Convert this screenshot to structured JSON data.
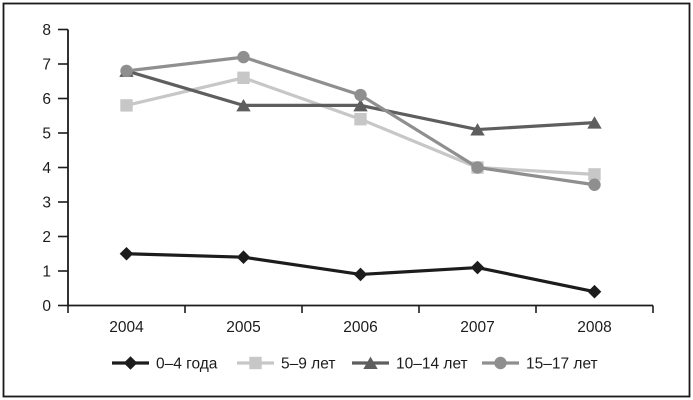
{
  "chart_data": {
    "type": "line",
    "title": "",
    "xlabel": "",
    "ylabel": "",
    "categories": [
      "2004",
      "2005",
      "2006",
      "2007",
      "2008"
    ],
    "series": [
      {
        "slug": "age-0-4",
        "name": "0–4 года",
        "values": [
          1.5,
          1.4,
          0.9,
          1.1,
          0.4
        ],
        "color": "#1c1c1c",
        "marker": "diamond"
      },
      {
        "slug": "age-5-9",
        "name": "5–9 лет",
        "values": [
          5.8,
          6.6,
          5.4,
          4.0,
          3.8
        ],
        "color": "#c7c7c7",
        "marker": "square"
      },
      {
        "slug": "age-10-14",
        "name": "10–14 лет",
        "values": [
          6.8,
          5.8,
          5.8,
          5.1,
          5.3
        ],
        "color": "#5e5e5e",
        "marker": "triangle"
      },
      {
        "slug": "age-15-17",
        "name": "15–17 лет",
        "values": [
          6.8,
          7.2,
          6.1,
          4.0,
          3.5
        ],
        "color": "#8f8f8f",
        "marker": "circle"
      }
    ],
    "ylim": [
      0,
      8
    ],
    "ytick_step": 1,
    "ytick_labels": [
      "0",
      "1",
      "2",
      "3",
      "4",
      "5",
      "6",
      "7",
      "8"
    ],
    "grid": false,
    "legend_position": "bottom"
  },
  "colors": {
    "axis": "#1c1c1c",
    "text": "#1c1c1c",
    "frame_border": "#1a1a1a",
    "background": "#ffffff"
  }
}
